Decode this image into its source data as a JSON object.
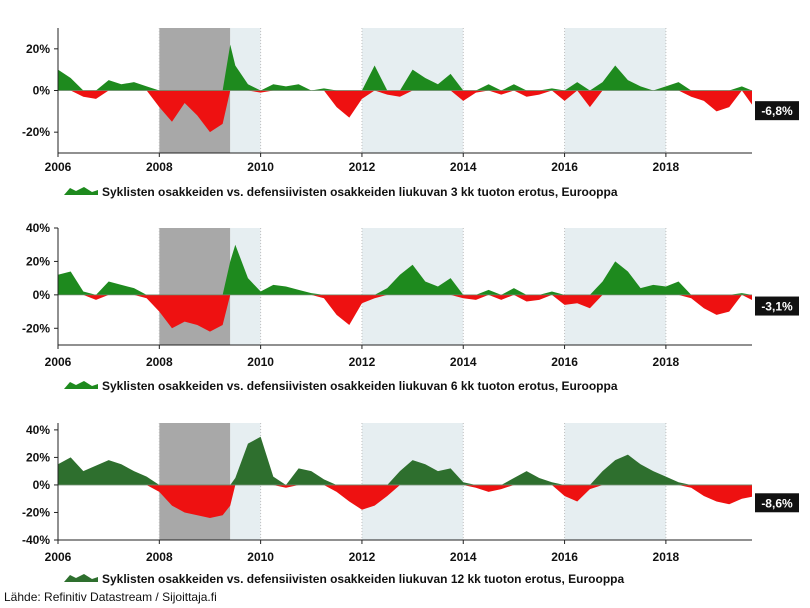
{
  "source": "Lähde: Refinitiv Datastream / Sijoittaja.fi",
  "colors": {
    "positive": "#1e8a1e",
    "positive_dark": "#2e6f2e",
    "negative": "#ee1111",
    "recession_band": "#a8a8a8",
    "shaded_band": "#e6eef1",
    "grid": "#bfbfbf",
    "end_label_bg": "#111111"
  },
  "chart_data": [
    {
      "type": "area",
      "legend": "Syklisten osakkeiden vs. defensiivisten osakkeiden liukuvan 3 kk tuoton erotus, Eurooppa",
      "end_label": "-6,8%",
      "ylim": [
        -30,
        30
      ],
      "yticks": [
        20,
        0,
        -20
      ],
      "ytick_labels": [
        "20%",
        "0%",
        "-20%"
      ],
      "xlim": [
        2006.0,
        2019.7
      ],
      "xticks": [
        2006,
        2008,
        2010,
        2012,
        2014,
        2016,
        2018
      ],
      "xtick_labels": [
        "2006",
        "2008",
        "2010",
        "2012",
        "2014",
        "2016",
        "2018"
      ],
      "shaded_periods": [
        {
          "from": 2008.0,
          "to": 2009.4,
          "style": "dark"
        },
        {
          "from": 2009.4,
          "to": 2010.0,
          "style": "light"
        },
        {
          "from": 2012.0,
          "to": 2014.0,
          "style": "light"
        },
        {
          "from": 2016.0,
          "to": 2018.0,
          "style": "light"
        }
      ],
      "x": [
        2006.0,
        2006.25,
        2006.5,
        2006.75,
        2007.0,
        2007.25,
        2007.5,
        2007.75,
        2008.0,
        2008.25,
        2008.5,
        2008.75,
        2009.0,
        2009.25,
        2009.4,
        2009.5,
        2009.75,
        2010.0,
        2010.25,
        2010.5,
        2010.75,
        2011.0,
        2011.25,
        2011.5,
        2011.75,
        2012.0,
        2012.25,
        2012.5,
        2012.75,
        2013.0,
        2013.25,
        2013.5,
        2013.75,
        2014.0,
        2014.25,
        2014.5,
        2014.75,
        2015.0,
        2015.25,
        2015.5,
        2015.75,
        2016.0,
        2016.25,
        2016.5,
        2016.75,
        2017.0,
        2017.25,
        2017.5,
        2017.75,
        2018.0,
        2018.25,
        2018.5,
        2018.75,
        2019.0,
        2019.25,
        2019.5,
        2019.7
      ],
      "y": [
        10,
        6,
        -3,
        -4,
        5,
        3,
        4,
        2,
        -8,
        -15,
        -6,
        -12,
        -20,
        -16,
        22,
        12,
        3,
        -1,
        3,
        2,
        3,
        0,
        1,
        -8,
        -13,
        -4,
        12,
        -2,
        -3,
        10,
        6,
        3,
        8,
        -5,
        -1,
        3,
        -2,
        3,
        -3,
        -2,
        1,
        -5,
        4,
        -8,
        4,
        12,
        5,
        2,
        0,
        2,
        4,
        -3,
        -5,
        -10,
        -8,
        2,
        -6.8
      ]
    },
    {
      "type": "area",
      "legend": "Syklisten osakkeiden vs. defensiivisten osakkeiden liukuvan 6 kk tuoton erotus, Eurooppa",
      "end_label": "-3,1%",
      "ylim": [
        -30,
        40
      ],
      "yticks": [
        40,
        20,
        0,
        -20
      ],
      "ytick_labels": [
        "40%",
        "20%",
        "0%",
        "-20%"
      ],
      "xlim": [
        2006.0,
        2019.7
      ],
      "xticks": [
        2006,
        2008,
        2010,
        2012,
        2014,
        2016,
        2018
      ],
      "xtick_labels": [
        "2006",
        "2008",
        "2010",
        "2012",
        "2014",
        "2016",
        "2018"
      ],
      "shaded_periods": [
        {
          "from": 2008.0,
          "to": 2009.4,
          "style": "dark"
        },
        {
          "from": 2009.4,
          "to": 2010.0,
          "style": "light"
        },
        {
          "from": 2012.0,
          "to": 2014.0,
          "style": "light"
        },
        {
          "from": 2016.0,
          "to": 2018.0,
          "style": "light"
        }
      ],
      "x": [
        2006.0,
        2006.25,
        2006.5,
        2006.75,
        2007.0,
        2007.25,
        2007.5,
        2007.75,
        2008.0,
        2008.25,
        2008.5,
        2008.75,
        2009.0,
        2009.25,
        2009.4,
        2009.5,
        2009.75,
        2010.0,
        2010.25,
        2010.5,
        2010.75,
        2011.0,
        2011.25,
        2011.5,
        2011.75,
        2012.0,
        2012.25,
        2012.5,
        2012.75,
        2013.0,
        2013.25,
        2013.5,
        2013.75,
        2014.0,
        2014.25,
        2014.5,
        2014.75,
        2015.0,
        2015.25,
        2015.5,
        2015.75,
        2016.0,
        2016.25,
        2016.5,
        2016.75,
        2017.0,
        2017.25,
        2017.5,
        2017.75,
        2018.0,
        2018.25,
        2018.5,
        2018.75,
        2019.0,
        2019.25,
        2019.5,
        2019.7
      ],
      "y": [
        12,
        14,
        2,
        -3,
        8,
        6,
        4,
        -2,
        -10,
        -20,
        -16,
        -18,
        -22,
        -18,
        20,
        30,
        10,
        2,
        6,
        5,
        3,
        1,
        -2,
        -12,
        -18,
        -5,
        -2,
        4,
        12,
        18,
        8,
        5,
        10,
        -2,
        -3,
        3,
        -3,
        4,
        -4,
        -3,
        2,
        -6,
        -5,
        -8,
        8,
        20,
        14,
        4,
        6,
        5,
        8,
        -2,
        -8,
        -12,
        -10,
        1,
        -3.1
      ]
    },
    {
      "type": "area",
      "legend": "Syklisten osakkeiden vs. defensiivisten osakkeiden liukuvan 12 kk tuoton erotus, Eurooppa",
      "end_label": "-8,6%",
      "ylim": [
        -40,
        45
      ],
      "yticks": [
        40,
        20,
        0,
        -20,
        -40
      ],
      "ytick_labels": [
        "40%",
        "20%",
        "0%",
        "-20%",
        "-40%"
      ],
      "xlim": [
        2006.0,
        2019.7
      ],
      "xticks": [
        2006,
        2008,
        2010,
        2012,
        2014,
        2016,
        2018
      ],
      "xtick_labels": [
        "2006",
        "2008",
        "2010",
        "2012",
        "2014",
        "2016",
        "2018"
      ],
      "shaded_periods": [
        {
          "from": 2008.0,
          "to": 2009.4,
          "style": "dark"
        },
        {
          "from": 2009.4,
          "to": 2010.0,
          "style": "light"
        },
        {
          "from": 2012.0,
          "to": 2014.0,
          "style": "light"
        },
        {
          "from": 2016.0,
          "to": 2018.0,
          "style": "light"
        }
      ],
      "x": [
        2006.0,
        2006.25,
        2006.5,
        2006.75,
        2007.0,
        2007.25,
        2007.5,
        2007.75,
        2008.0,
        2008.25,
        2008.5,
        2008.75,
        2009.0,
        2009.25,
        2009.4,
        2009.5,
        2009.75,
        2010.0,
        2010.25,
        2010.5,
        2010.75,
        2011.0,
        2011.25,
        2011.5,
        2011.75,
        2012.0,
        2012.25,
        2012.5,
        2012.75,
        2013.0,
        2013.25,
        2013.5,
        2013.75,
        2014.0,
        2014.25,
        2014.5,
        2014.75,
        2015.0,
        2015.25,
        2015.5,
        2015.75,
        2016.0,
        2016.25,
        2016.5,
        2016.75,
        2017.0,
        2017.25,
        2017.5,
        2017.75,
        2018.0,
        2018.25,
        2018.5,
        2018.75,
        2019.0,
        2019.25,
        2019.5,
        2019.7
      ],
      "y": [
        15,
        20,
        10,
        14,
        18,
        15,
        10,
        6,
        -5,
        -15,
        -20,
        -22,
        -24,
        -22,
        -15,
        5,
        30,
        35,
        6,
        -2,
        12,
        10,
        4,
        -5,
        -12,
        -18,
        -15,
        -8,
        10,
        18,
        15,
        10,
        12,
        2,
        -2,
        -5,
        -3,
        5,
        10,
        5,
        2,
        -8,
        -12,
        -3,
        10,
        18,
        22,
        15,
        10,
        6,
        2,
        -2,
        -8,
        -12,
        -14,
        -10,
        -8.6
      ]
    }
  ]
}
